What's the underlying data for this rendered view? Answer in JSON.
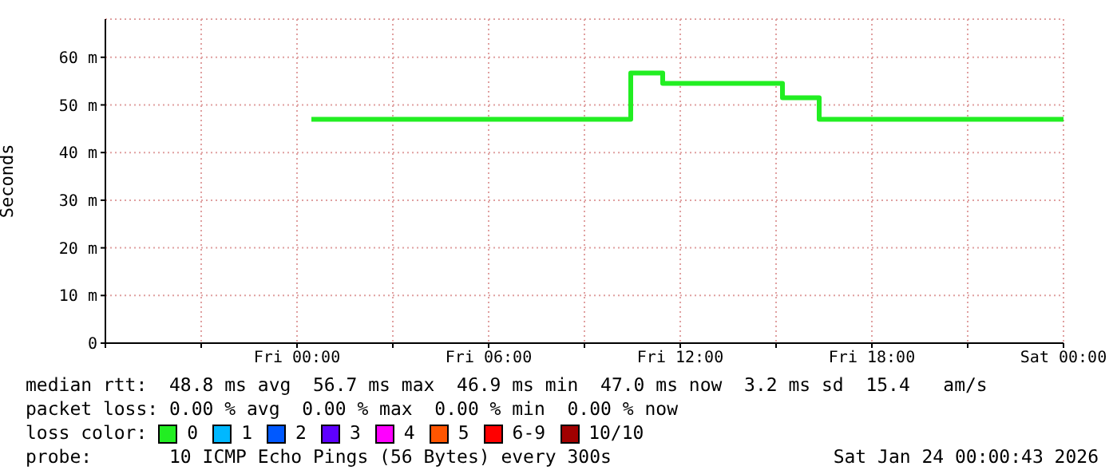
{
  "chart_data": {
    "type": "step",
    "ylabel": "Seconds",
    "legend_title": "loss color:",
    "legend": "bottom",
    "grid": true,
    "line_style": "solid",
    "marker": "none",
    "x": [
      "2026-01-23T00:27",
      "2026-01-23T10:27",
      "2026-01-23T11:27",
      "2026-01-23T15:12",
      "2026-01-23T16:21",
      "2026-01-24T00:00"
    ],
    "xlim": [
      "2026-01-22T18:00",
      "2026-01-24T00:00"
    ],
    "xticks": [
      {
        "value": "2026-01-22T18:00",
        "label": null
      },
      {
        "value": "2026-01-22T21:00",
        "label": null
      },
      {
        "value": "2026-01-23T00:00",
        "label": "Fri 00:00"
      },
      {
        "value": "2026-01-23T03:00",
        "label": null
      },
      {
        "value": "2026-01-23T06:00",
        "label": "Fri 06:00"
      },
      {
        "value": "2026-01-23T09:00",
        "label": null
      },
      {
        "value": "2026-01-23T12:00",
        "label": "Fri 12:00"
      },
      {
        "value": "2026-01-23T15:00",
        "label": null
      },
      {
        "value": "2026-01-23T18:00",
        "label": "Fri 18:00"
      },
      {
        "value": "2026-01-23T21:00",
        "label": null
      },
      {
        "value": "2026-01-24T00:00",
        "label": "Sat 00:00"
      }
    ],
    "ylim": [
      0,
      68
    ],
    "yticks": [
      0,
      {
        "value": 10,
        "label": "10 m"
      },
      {
        "value": 20,
        "label": "20 m"
      },
      {
        "value": 30,
        "label": "30 m"
      },
      {
        "value": 40,
        "label": "40 m"
      },
      {
        "value": 50,
        "label": "50 m"
      },
      {
        "value": 60,
        "label": "60 m"
      }
    ],
    "series": [
      {
        "name": "0",
        "color": "#22ee22",
        "values": [
          47,
          56.7,
          54.5,
          51.5,
          47,
          47
        ]
      },
      {
        "name": "1",
        "color": "#00b8ff",
        "values": [
          null,
          null,
          null,
          null,
          null,
          null
        ]
      },
      {
        "name": "2",
        "color": "#0059ff",
        "values": [
          null,
          null,
          null,
          null,
          null,
          null
        ]
      },
      {
        "name": "3",
        "color": "#5e00ff",
        "values": [
          null,
          null,
          null,
          null,
          null,
          null
        ]
      },
      {
        "name": "4",
        "color": "#ff00ff",
        "values": [
          null,
          null,
          null,
          null,
          null,
          null
        ]
      },
      {
        "name": "5",
        "color": "#ff5500",
        "values": [
          null,
          null,
          null,
          null,
          null,
          null
        ]
      },
      {
        "name": "6-9",
        "color": "#ff0000",
        "values": [
          null,
          null,
          null,
          null,
          null,
          null
        ]
      },
      {
        "name": "10/10",
        "color": "#a10000",
        "values": [
          null,
          null,
          null,
          null,
          null,
          null
        ]
      }
    ],
    "annotations": [
      "median rtt:  48.8 ms avg  56.7 ms max  46.9 ms min  47.0 ms now  3.2 ms sd  15.4   am/s",
      "packet loss: 0.00 % avg  0.00 % max  0.00 % min  0.00 % now",
      "probe:       10 ICMP Echo Pings (56 Bytes) every 300s",
      "Sat Jan 24 00:00:43 2026"
    ]
  }
}
